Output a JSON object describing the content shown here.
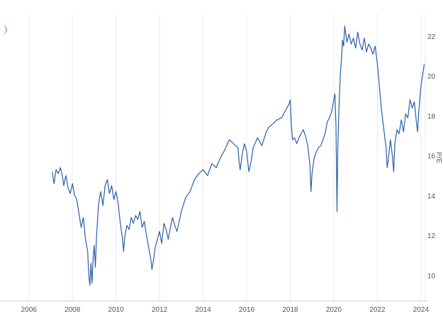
{
  "chart_data": {
    "type": "line",
    "title": "",
    "xlabel": "",
    "ylabel": "P/E",
    "xlim": [
      2005,
      2024.2
    ],
    "ylim": [
      8.7,
      23.1
    ],
    "y_axis_side": "right",
    "grid": {
      "horizontal": false,
      "vertical": true
    },
    "legend": "none",
    "colors": {
      "line": "#2a5ea8",
      "grid": "#e6e9ee",
      "axis": "#cccccc",
      "text": "#555555",
      "corner_icon": "#8fb4e8"
    },
    "x_ticks": [
      {
        "value": 2006,
        "label": "2006"
      },
      {
        "value": 2008,
        "label": "2008"
      },
      {
        "value": 2010,
        "label": "2010"
      },
      {
        "value": 2012,
        "label": "2012"
      },
      {
        "value": 2014,
        "label": "2014"
      },
      {
        "value": 2016,
        "label": "2016"
      },
      {
        "value": 2018,
        "label": "2018"
      },
      {
        "value": 2020,
        "label": "2020"
      },
      {
        "value": 2022,
        "label": "2022"
      },
      {
        "value": 2024,
        "label": "2024"
      }
    ],
    "y_ticks": [
      {
        "value": 10,
        "label": "10"
      },
      {
        "value": 12,
        "label": "12"
      },
      {
        "value": 14,
        "label": "14"
      },
      {
        "value": 16,
        "label": "16"
      },
      {
        "value": 18,
        "label": "18"
      },
      {
        "value": 20,
        "label": "20"
      },
      {
        "value": 22,
        "label": "22"
      }
    ],
    "series": [
      {
        "x": [
          2007.08,
          2007.15,
          2007.25,
          2007.35,
          2007.45,
          2007.55,
          2007.6,
          2007.7,
          2007.8,
          2007.9,
          2008.0,
          2008.1,
          2008.2,
          2008.3,
          2008.4,
          2008.5,
          2008.6,
          2008.7,
          2008.75,
          2008.8,
          2008.85,
          2008.9,
          2008.95,
          2009.0,
          2009.05,
          2009.1,
          2009.15,
          2009.2,
          2009.3,
          2009.4,
          2009.5,
          2009.6,
          2009.7,
          2009.8,
          2009.9,
          2010.0,
          2010.1,
          2010.2,
          2010.3,
          2010.35,
          2010.4,
          2010.5,
          2010.6,
          2010.7,
          2010.8,
          2010.9,
          2011.0,
          2011.1,
          2011.2,
          2011.3,
          2011.4,
          2011.5,
          2011.6,
          2011.65,
          2011.7,
          2011.8,
          2011.9,
          2012.0,
          2012.1,
          2012.2,
          2012.3,
          2012.4,
          2012.5,
          2012.6,
          2012.7,
          2012.8,
          2012.9,
          2013.0,
          2013.2,
          2013.4,
          2013.6,
          2013.8,
          2014.0,
          2014.2,
          2014.4,
          2014.6,
          2014.8,
          2015.0,
          2015.2,
          2015.4,
          2015.6,
          2015.65,
          2015.7,
          2015.8,
          2015.9,
          2016.0,
          2016.1,
          2016.2,
          2016.3,
          2016.5,
          2016.7,
          2016.9,
          2017.0,
          2017.2,
          2017.4,
          2017.6,
          2017.8,
          2017.95,
          2018.0,
          2018.05,
          2018.1,
          2018.2,
          2018.3,
          2018.4,
          2018.5,
          2018.6,
          2018.7,
          2018.8,
          2018.9,
          2018.95,
          2019.0,
          2019.1,
          2019.2,
          2019.3,
          2019.4,
          2019.5,
          2019.6,
          2019.7,
          2019.8,
          2019.9,
          2020.0,
          2020.05,
          2020.1,
          2020.15,
          2020.18,
          2020.22,
          2020.26,
          2020.3,
          2020.35,
          2020.4,
          2020.45,
          2020.5,
          2020.6,
          2020.7,
          2020.8,
          2020.9,
          2021.0,
          2021.1,
          2021.2,
          2021.3,
          2021.4,
          2021.5,
          2021.6,
          2021.7,
          2021.8,
          2021.9,
          2022.0,
          2022.1,
          2022.2,
          2022.3,
          2022.4,
          2022.45,
          2022.5,
          2022.6,
          2022.7,
          2022.75,
          2022.8,
          2022.9,
          2023.0,
          2023.1,
          2023.2,
          2023.3,
          2023.4,
          2023.5,
          2023.6,
          2023.7,
          2023.8,
          2023.85,
          2023.9,
          2024.0,
          2024.1,
          2024.15
        ],
        "y": [
          15.2,
          14.6,
          15.3,
          15.1,
          15.4,
          14.9,
          14.5,
          15.0,
          14.4,
          14.1,
          14.6,
          14.0,
          13.8,
          13.1,
          12.4,
          12.9,
          11.8,
          11.2,
          10.0,
          9.5,
          10.6,
          9.6,
          10.9,
          11.5,
          10.4,
          11.8,
          12.7,
          13.6,
          14.2,
          13.5,
          14.5,
          14.8,
          14.1,
          14.5,
          13.8,
          14.2,
          13.6,
          12.6,
          11.8,
          11.2,
          11.9,
          12.5,
          12.3,
          12.9,
          12.6,
          13.0,
          12.8,
          13.2,
          12.4,
          12.7,
          12.0,
          11.4,
          10.8,
          10.3,
          10.6,
          11.4,
          11.8,
          12.2,
          11.6,
          12.6,
          12.3,
          11.8,
          12.4,
          12.9,
          12.5,
          12.2,
          12.7,
          13.2,
          13.9,
          14.2,
          14.8,
          15.1,
          15.3,
          15.0,
          15.6,
          15.4,
          15.9,
          16.3,
          16.8,
          16.6,
          16.4,
          15.7,
          15.3,
          16.1,
          16.6,
          16.2,
          15.2,
          15.7,
          16.4,
          16.9,
          16.5,
          17.2,
          17.4,
          17.6,
          17.8,
          17.9,
          18.3,
          18.6,
          18.8,
          17.6,
          16.8,
          16.9,
          16.6,
          16.9,
          17.1,
          17.3,
          17.0,
          16.5,
          15.6,
          14.2,
          15.1,
          15.9,
          16.2,
          16.4,
          16.5,
          16.8,
          17.1,
          17.7,
          17.9,
          18.2,
          18.8,
          19.1,
          17.5,
          13.2,
          16.2,
          17.8,
          19.0,
          20.1,
          20.8,
          21.8,
          21.5,
          22.5,
          21.7,
          22.1,
          21.6,
          21.9,
          21.4,
          22.2,
          21.6,
          21.3,
          21.9,
          21.2,
          21.6,
          21.4,
          21.1,
          21.5,
          20.6,
          19.4,
          18.2,
          17.3,
          16.4,
          15.4,
          15.8,
          16.8,
          15.9,
          15.2,
          16.6,
          17.3,
          17.1,
          17.8,
          17.2,
          18.1,
          17.9,
          18.8,
          18.4,
          18.7,
          17.6,
          17.2,
          18.2,
          19.5,
          20.2,
          20.6
        ]
      }
    ]
  }
}
